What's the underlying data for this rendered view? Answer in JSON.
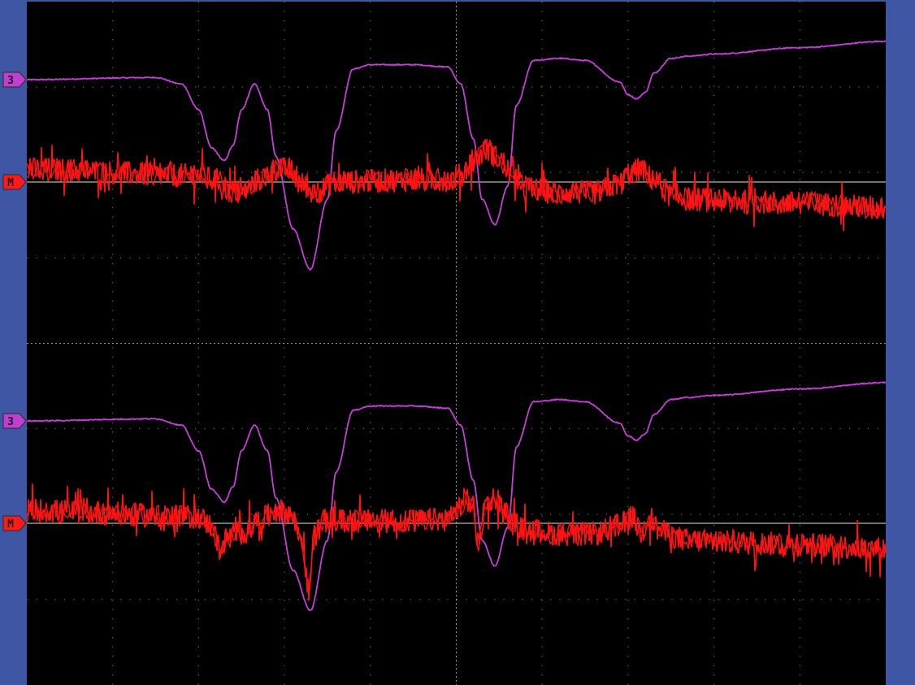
{
  "screen": {
    "background_color": "#000000",
    "frame_color": "#3e56a3",
    "grid_color": "#6b6b6b",
    "center_axis_color": "#9a9a8a"
  },
  "chart_data": [
    {
      "type": "line",
      "name": "upper-trace-pair",
      "markers": [
        {
          "label": "3",
          "channel": "magenta",
          "color": "#c03fd0"
        },
        {
          "label": "M",
          "channel": "red",
          "color": "#ff1a1a"
        }
      ],
      "x_divisions": 10,
      "y_divisions": 8,
      "series": [
        {
          "color": "#c63fd6",
          "noise": 0.025,
          "x": [
            0,
            1.5,
            1.8,
            2.0,
            2.15,
            2.3,
            2.4,
            2.5,
            2.65,
            2.8,
            2.9,
            3.1,
            3.3,
            3.5,
            3.6,
            3.8,
            4.0,
            4.5,
            4.9,
            5.05,
            5.2,
            5.3,
            5.45,
            5.6,
            5.7,
            5.9,
            6.2,
            6.5,
            6.9,
            7.0,
            7.1,
            7.2,
            7.3,
            7.5,
            7.7,
            8.0,
            9.0,
            10.0
          ],
          "y": [
            3.0,
            3.05,
            2.9,
            2.3,
            1.4,
            1.1,
            1.45,
            2.3,
            2.9,
            2.3,
            1.2,
            -0.5,
            -1.45,
            0.2,
            1.8,
            3.25,
            3.35,
            3.35,
            3.3,
            2.9,
            1.6,
            0.2,
            -0.4,
            0.5,
            2.4,
            3.45,
            3.5,
            3.45,
            2.95,
            2.65,
            2.55,
            2.7,
            3.15,
            3.5,
            3.55,
            3.6,
            3.75,
            3.9
          ]
        },
        {
          "color": "#ff1212",
          "noise": 0.28,
          "x": [
            0,
            2.0,
            2.2,
            2.35,
            2.5,
            2.7,
            2.9,
            3.05,
            3.2,
            3.35,
            3.6,
            4.5,
            4.9,
            5.05,
            5.2,
            5.35,
            5.5,
            5.65,
            5.8,
            6.2,
            6.6,
            6.9,
            7.0,
            7.15,
            7.3,
            7.5,
            7.7,
            8.2,
            9.0,
            10.0
          ],
          "y": [
            0.3,
            0.15,
            0.05,
            -0.2,
            -0.25,
            0.05,
            0.3,
            0.3,
            -0.05,
            -0.25,
            0.0,
            0.05,
            0.05,
            0.15,
            0.5,
            0.75,
            0.55,
            0.2,
            -0.15,
            -0.25,
            -0.25,
            -0.05,
            0.2,
            0.3,
            0.05,
            -0.3,
            -0.4,
            -0.45,
            -0.5,
            -0.6
          ]
        }
      ]
    },
    {
      "type": "line",
      "name": "lower-trace-pair",
      "markers": [
        {
          "label": "3",
          "channel": "magenta",
          "color": "#c03fd0"
        },
        {
          "label": "M",
          "channel": "red",
          "color": "#ff1a1a"
        }
      ],
      "x_divisions": 10,
      "y_divisions": 8,
      "series": [
        {
          "color": "#c63fd6",
          "noise": 0.025,
          "x": [
            0,
            1.5,
            1.8,
            2.0,
            2.15,
            2.3,
            2.4,
            2.5,
            2.65,
            2.8,
            2.9,
            3.1,
            3.3,
            3.5,
            3.6,
            3.8,
            4.0,
            4.5,
            4.9,
            5.05,
            5.2,
            5.3,
            5.45,
            5.6,
            5.7,
            5.9,
            6.2,
            6.5,
            6.9,
            7.0,
            7.1,
            7.2,
            7.3,
            7.5,
            7.7,
            8.0,
            9.0,
            10.0
          ],
          "y": [
            3.0,
            3.05,
            2.9,
            2.3,
            1.4,
            1.1,
            1.45,
            2.3,
            2.9,
            2.3,
            1.2,
            -0.5,
            -1.45,
            0.2,
            1.8,
            3.25,
            3.35,
            3.35,
            3.3,
            2.9,
            1.6,
            0.2,
            -0.4,
            0.5,
            2.4,
            3.45,
            3.5,
            3.45,
            2.95,
            2.65,
            2.55,
            2.7,
            3.15,
            3.5,
            3.55,
            3.6,
            3.75,
            3.9
          ]
        },
        {
          "color": "#ff1212",
          "noise": 0.28,
          "x": [
            0,
            2.0,
            2.15,
            2.25,
            2.35,
            2.5,
            2.7,
            2.9,
            3.05,
            3.2,
            3.28,
            3.35,
            3.45,
            3.6,
            4.5,
            4.9,
            5.0,
            5.1,
            5.2,
            5.25,
            5.35,
            5.45,
            5.55,
            5.65,
            5.8,
            6.2,
            6.6,
            6.9,
            7.05,
            7.15,
            7.25,
            7.35,
            7.5,
            7.7,
            8.2,
            9.0,
            10.0
          ],
          "y": [
            0.3,
            0.15,
            -0.05,
            -0.6,
            -0.3,
            -0.25,
            0.05,
            0.3,
            0.25,
            -0.3,
            -1.6,
            -0.3,
            0.05,
            0.05,
            0.05,
            0.1,
            0.35,
            0.55,
            0.4,
            -0.5,
            0.45,
            0.6,
            0.35,
            0.0,
            -0.15,
            -0.25,
            -0.25,
            -0.05,
            0.15,
            -0.25,
            0.15,
            -0.15,
            -0.3,
            -0.4,
            -0.45,
            -0.5,
            -0.6
          ]
        }
      ]
    }
  ]
}
